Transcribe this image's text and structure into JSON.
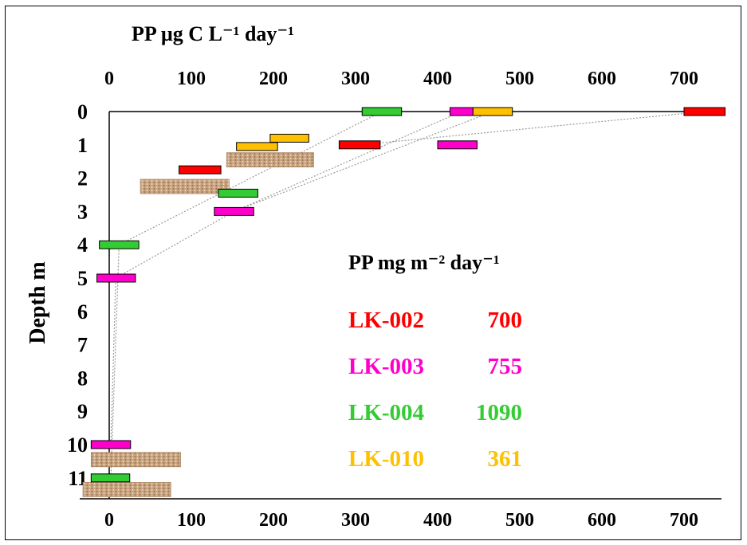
{
  "chart_data": {
    "type": "bar",
    "top_title": "PP  µg C L⁻¹ day⁻¹",
    "ylabel": "Depth m",
    "xlim": [
      -30,
      745
    ],
    "ylim": [
      0,
      11.5
    ],
    "x_ticks": [
      "0",
      "100",
      "200",
      "300",
      "400",
      "500",
      "600",
      "700"
    ],
    "x_tick_values": [
      0,
      100,
      200,
      300,
      400,
      500,
      600,
      700
    ],
    "y_ticks": [
      "0",
      "1",
      "2",
      "3",
      "4",
      "5",
      "6",
      "7",
      "8",
      "9",
      "10",
      "11"
    ],
    "y_tick_values": [
      0,
      1,
      2,
      3,
      4,
      5,
      6,
      7,
      8,
      9,
      10,
      11
    ],
    "legend": {
      "title": "PP  mg m⁻² day⁻¹",
      "entries": [
        {
          "station": "LK-002",
          "value": "700",
          "color": "#ff0000"
        },
        {
          "station": "LK-003",
          "value": "755",
          "color": "#ff00cc"
        },
        {
          "station": "LK-004",
          "value": "1090",
          "color": "#33cc33"
        },
        {
          "station": "LK-010",
          "value": "361",
          "color": "#ffc000"
        }
      ]
    },
    "series": [
      {
        "station": "LK-002",
        "color": "#ff0000",
        "points": [
          {
            "depth": 0,
            "lo": 700,
            "hi": 750
          },
          {
            "depth": 1,
            "lo": 280,
            "hi": 330
          },
          {
            "depth": 1.75,
            "lo": 85,
            "hi": 136
          }
        ]
      },
      {
        "station": "LK-003",
        "color": "#ff00cc",
        "points": [
          {
            "depth": 0,
            "lo": 415,
            "hi": 443
          },
          {
            "depth": 1,
            "lo": 400,
            "hi": 448
          },
          {
            "depth": 3,
            "lo": 128,
            "hi": 176
          },
          {
            "depth": 5,
            "lo": -15,
            "hi": 32
          },
          {
            "depth": 10,
            "lo": -22,
            "hi": 26
          }
        ]
      },
      {
        "station": "LK-004",
        "color": "#33cc33",
        "points": [
          {
            "depth": 0,
            "lo": 308,
            "hi": 356
          },
          {
            "depth": 2.45,
            "lo": 133,
            "hi": 181
          },
          {
            "depth": 4,
            "lo": -12,
            "hi": 36
          },
          {
            "depth": 11,
            "lo": -22,
            "hi": 25
          }
        ]
      },
      {
        "station": "LK-010",
        "color": "#ffc000",
        "points": [
          {
            "depth": 0,
            "lo": 443,
            "hi": 491
          },
          {
            "depth": 0.8,
            "lo": 196,
            "hi": 243
          },
          {
            "depth": 1.05,
            "lo": 155,
            "hi": 205
          }
        ]
      }
    ],
    "textured_bars": [
      {
        "depth": 1.45,
        "lo": 143,
        "hi": 249
      },
      {
        "depth": 2.25,
        "lo": 38,
        "hi": 146
      },
      {
        "depth": 10.45,
        "lo": -22,
        "hi": 87
      },
      {
        "depth": 11.35,
        "lo": -32,
        "hi": 75
      }
    ],
    "dotted_profiles": [
      {
        "station": "LK-002",
        "points": [
          [
            725,
            0
          ],
          [
            305,
            1
          ]
        ]
      },
      {
        "station": "LK-003",
        "points": [
          [
            429,
            0
          ],
          [
            152,
            3
          ],
          [
            8,
            5
          ],
          [
            2,
            10
          ]
        ]
      },
      {
        "station": "LK-004",
        "points": [
          [
            332,
            0
          ],
          [
            12,
            4
          ],
          [
            2,
            11
          ]
        ]
      },
      {
        "station": "LK-010",
        "points": [
          [
            467,
            0
          ],
          [
            152,
            3
          ]
        ]
      }
    ]
  }
}
